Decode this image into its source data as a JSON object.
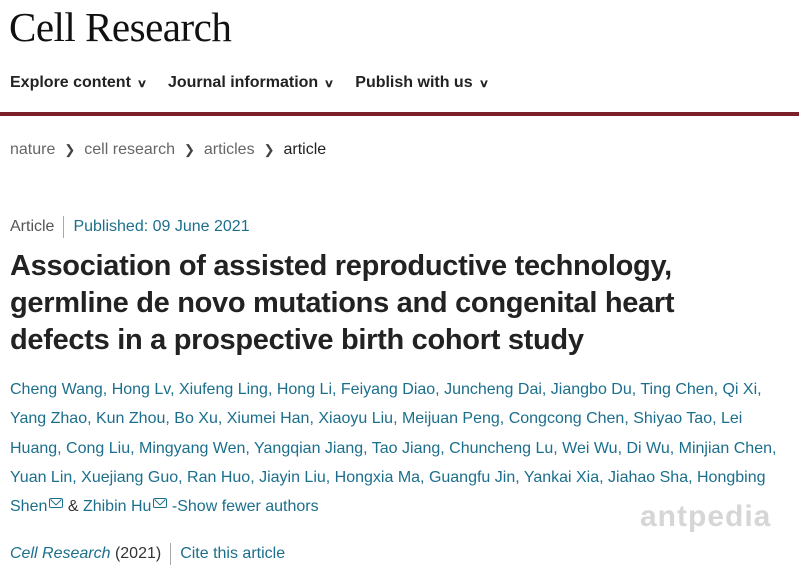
{
  "header": {
    "logo": "Cell Research"
  },
  "nav": [
    {
      "label": "Explore content"
    },
    {
      "label": "Journal information"
    },
    {
      "label": "Publish with us"
    }
  ],
  "breadcrumb": [
    "nature",
    "cell research",
    "articles",
    "article"
  ],
  "article": {
    "type": "Article",
    "published": "Published: 09 June 2021",
    "title": "Association of assisted reproductive technology, germline de novo mutations and congenital heart defects in a prospective birth cohort study",
    "authors": [
      "Cheng Wang",
      "Hong Lv",
      "Xiufeng Ling",
      "Hong Li",
      "Feiyang Diao",
      "Juncheng Dai",
      "Jiangbo Du",
      "Ting Chen",
      "Qi Xi",
      "Yang Zhao",
      "Kun Zhou",
      "Bo Xu",
      "Xiumei Han",
      "Xiaoyu Liu",
      "Meijuan Peng",
      "Congcong Chen",
      "Shiyao Tao",
      "Lei Huang",
      "Cong Liu",
      "Mingyang Wen",
      "Yangqian Jiang",
      "Tao Jiang",
      "Chuncheng Lu",
      "Wei Wu",
      "Di Wu",
      "Minjian Chen",
      "Yuan Lin",
      "Xuejiang Guo",
      "Ran Huo",
      "Jiayin Liu",
      "Hongxia Ma",
      "Guangfu Jin",
      "Yankai Xia",
      "Jiahao Sha",
      "Hongbing Shen"
    ],
    "last_author": "Zhibin Hu",
    "ampersand": "&",
    "show_fewer": "-Show fewer authors",
    "journal": "Cell Research",
    "year": "(2021)",
    "cite": "Cite this article"
  },
  "watermark": "antpedia",
  "colors": {
    "accent": "#1c6f8c",
    "brand_rule": "#7b1f2a"
  },
  "icons": {
    "nav_chevron": "chevron-down-icon",
    "breadcrumb_sep": "chevron-right-icon",
    "corresponding": "mail-icon"
  }
}
